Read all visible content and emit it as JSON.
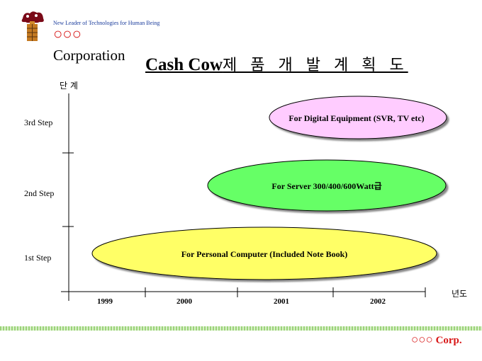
{
  "header": {
    "tagline": "New Leader of Technologies for Human Being",
    "company_circles": "○○○",
    "company_word": "Corporation"
  },
  "title": {
    "latin": "Cash Cow",
    "korean": "제 품 개 발 계 획 도"
  },
  "axes": {
    "y_label": "단 계",
    "x_label": "년도",
    "steps": [
      "1st Step",
      "2nd Step",
      "3rd Step"
    ],
    "years": [
      "1999",
      "2000",
      "2001",
      "2002"
    ]
  },
  "plans": [
    {
      "label": "For  Personal Computer (Included  Note  Book)",
      "step": 1,
      "start": "1999",
      "end": "2002",
      "color": "#ffff66"
    },
    {
      "label": "For Server 300/400/600Watt급",
      "step": 2,
      "start": "2000",
      "end": "2002",
      "color": "#66ff66"
    },
    {
      "label": "For Digital Equipment (SVR, TV etc)",
      "step": 3,
      "start": "2001",
      "end": "2002",
      "color": "#ffccff"
    }
  ],
  "footer": {
    "circles": "○○○",
    "corp": "Corp."
  },
  "colors": {
    "brand_red": "#d81818",
    "tagline_blue": "#1a3c9c",
    "band_green": "#9bd37a"
  }
}
